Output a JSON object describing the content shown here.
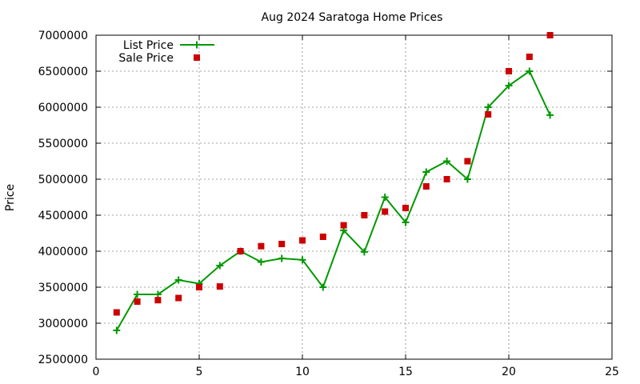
{
  "chart_data": {
    "type": "line",
    "title": "Aug 2024 Saratoga Home Prices",
    "xlabel": "",
    "ylabel": "Price",
    "xlim": [
      0,
      25
    ],
    "ylim": [
      2500000,
      7000000
    ],
    "xticks": [
      0,
      5,
      10,
      15,
      20,
      25
    ],
    "yticks": [
      2500000,
      3000000,
      3500000,
      4000000,
      4500000,
      5000000,
      5500000,
      6000000,
      6500000,
      7000000
    ],
    "grid": true,
    "legend_position": "top-left",
    "series": [
      {
        "name": "List Price",
        "style": "line-plus",
        "color": "#009900",
        "x": [
          1,
          2,
          3,
          4,
          5,
          6,
          7,
          8,
          9,
          10,
          11,
          12,
          13,
          14,
          15,
          16,
          17,
          18,
          19,
          20,
          21,
          22
        ],
        "y": [
          2900000,
          3400000,
          3400000,
          3600000,
          3550000,
          3800000,
          4000000,
          3850000,
          3900000,
          3880000,
          3500000,
          4290000,
          3990000,
          4750000,
          4400000,
          5100000,
          5250000,
          5000000,
          6000000,
          6300000,
          6500000,
          5890000
        ]
      },
      {
        "name": "Sale Price",
        "style": "square",
        "color": "#cc0000",
        "x": [
          1,
          2,
          3,
          4,
          5,
          6,
          7,
          8,
          9,
          10,
          11,
          12,
          13,
          14,
          15,
          16,
          17,
          18,
          19,
          20,
          21,
          22
        ],
        "y": [
          3150000,
          3300000,
          3320000,
          3350000,
          3500000,
          3510000,
          4000000,
          4070000,
          4100000,
          4150000,
          4200000,
          4360000,
          4500000,
          4550000,
          4600000,
          4900000,
          5000000,
          5250000,
          5900000,
          6500000,
          6700000,
          7000000
        ]
      }
    ]
  }
}
